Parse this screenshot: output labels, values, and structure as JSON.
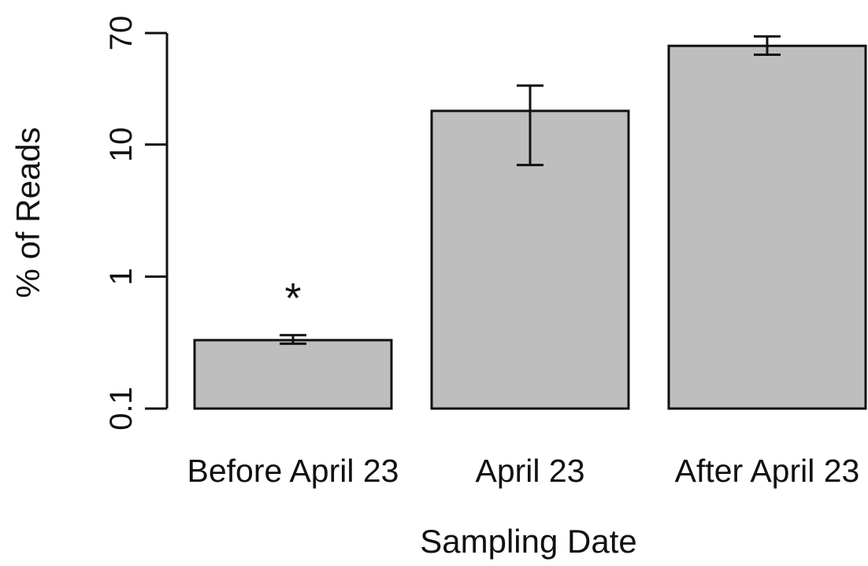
{
  "chart_data": {
    "type": "bar",
    "title": "",
    "xlabel": "Sampling Date",
    "ylabel": "% of Reads",
    "yscale": "log",
    "ylim": [
      0.1,
      70
    ],
    "yticks": [
      {
        "value": 0.1,
        "label": "0.1"
      },
      {
        "value": 1,
        "label": "1"
      },
      {
        "value": 10,
        "label": "10"
      },
      {
        "value": 70,
        "label": "70"
      }
    ],
    "categories": [
      "Before April 23",
      "April 23",
      "After April 23"
    ],
    "values": [
      0.33,
      18,
      56
    ],
    "error_low": [
      0.31,
      7,
      48
    ],
    "error_high": [
      0.36,
      28,
      66
    ],
    "annotations": [
      {
        "category": "Before April 23",
        "text": "*"
      }
    ],
    "colors": {
      "bar_fill": "#bebebe",
      "stroke": "#111111"
    },
    "grid": false,
    "legend": "none"
  }
}
